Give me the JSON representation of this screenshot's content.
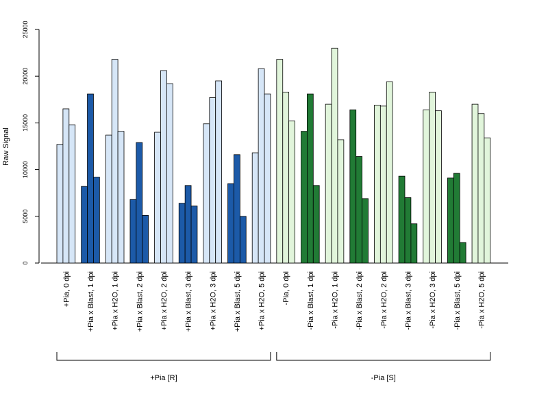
{
  "chart_data": {
    "type": "bar",
    "ylabel": "Raw Signal",
    "ylim": [
      0,
      25000
    ],
    "yticks": [
      0,
      5000,
      10000,
      15000,
      20000,
      25000
    ],
    "grid": false,
    "legend": "none",
    "categories": [
      "+Pia, 0 dpi",
      "+Pia x Blast, 1 dpi",
      "+Pia x H2O, 1 dpi",
      "+Pia x Blast, 2 dpi",
      "+Pia x H2O, 2 dpi",
      "+Pia x Blast, 3 dpi",
      "+Pia x H2O, 3 dpi",
      "+Pia x Blast, 5 dpi",
      "+Pia x H2O, 5 dpi",
      "-Pia, 0 dpi",
      "-Pia x Blast, 1 dpi",
      "-Pia x H2O, 1 dpi",
      "-Pia x Blast, 2 dpi",
      "-Pia x H2O, 2 dpi",
      "-Pia x Blast, 3 dpi",
      "-Pia x H2O, 3 dpi",
      "-Pia x Blast, 5 dpi",
      "-Pia x H2O, 5 dpi"
    ],
    "replicate_values": [
      [
        12700,
        16500,
        14800
      ],
      [
        8200,
        18100,
        9200
      ],
      [
        13700,
        21800,
        14100
      ],
      [
        6800,
        12900,
        5100
      ],
      [
        14000,
        20600,
        19200
      ],
      [
        6400,
        8300,
        6100
      ],
      [
        14900,
        17700,
        19500
      ],
      [
        8500,
        11600,
        5000
      ],
      [
        11800,
        20800,
        18100
      ],
      [
        21800,
        18300,
        15200
      ],
      [
        14100,
        18100,
        8300
      ],
      [
        17000,
        23000,
        13200
      ],
      [
        16400,
        11400,
        6900
      ],
      [
        16900,
        16800,
        19400
      ],
      [
        9300,
        7000,
        4200
      ],
      [
        16400,
        18300,
        16300
      ],
      [
        9100,
        9600,
        2200
      ],
      [
        17000,
        16000,
        13400
      ]
    ],
    "bar_colors": [
      "#d6e6f7",
      "#1c5aa8",
      "#d6e6f7",
      "#1c5aa8",
      "#d6e6f7",
      "#1c5aa8",
      "#d6e6f7",
      "#1c5aa8",
      "#d6e6f7",
      "#e1f5db",
      "#217b35",
      "#e1f5db",
      "#217b35",
      "#e1f5db",
      "#217b35",
      "#e1f5db",
      "#217b35",
      "#e1f5db"
    ],
    "groups": [
      {
        "label": "+Pia [R]",
        "from": 0,
        "to": 8
      },
      {
        "label": "-Pia [S]",
        "from": 9,
        "to": 17
      }
    ]
  }
}
